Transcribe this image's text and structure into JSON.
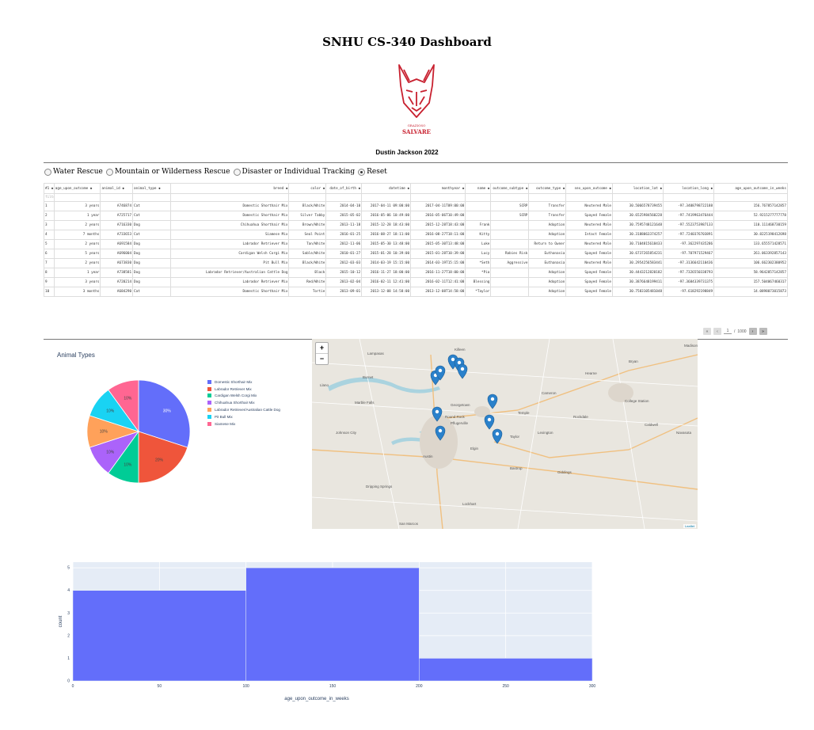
{
  "header": {
    "title": "SNHU CS-340 Dashboard",
    "logo_text_top": "GRAZIOSO",
    "logo_text_bottom": "SALVARE",
    "author": "Dustin Jackson 2022"
  },
  "filters": [
    {
      "label": "Water Rescue",
      "checked": false
    },
    {
      "label": "Mountain or Wilderness Rescue",
      "checked": false
    },
    {
      "label": "Disaster or Individual Tracking",
      "checked": false
    },
    {
      "label": "Reset",
      "checked": true
    }
  ],
  "table": {
    "columns": [
      "#1 ◆",
      "age_upon_outcome ◆",
      "animal_id ◆",
      "animal_type ◆",
      "breed ◆",
      "color ◆",
      "date_of_birth ◆",
      "datetime ◆",
      "monthyear ◆",
      "name ◆",
      "outcome_subtype ◆",
      "outcome_type ◆",
      "sex_upon_outcome ◆",
      "location_lat ◆",
      "location_long ◆",
      "age_upon_outcome_in_weeks"
    ],
    "filter_placeholder": "filter data...",
    "rows": [
      [
        "1",
        "3 years",
        "A746874",
        "Cat",
        "Domestic Shorthair Mix",
        "Black/White",
        "2014-04-10",
        "2017-04-11 09:00:00",
        "2017-04-11T09:00:00",
        "",
        "SCRP",
        "Transfer",
        "Neutered Male",
        "30.5066578739455",
        "-97.3408798722188",
        "156.767857142857"
      ],
      [
        "2",
        "1 year",
        "A725717",
        "Cat",
        "Domestic Shorthair Mix",
        "Silver Tabby",
        "2015-05-02",
        "2016-05-06 10:49:00",
        "2016-05-06T10:49:00",
        "",
        "SCRP",
        "Transfer",
        "Spayed Female",
        "30.6525984560228",
        "-97.7419963476444",
        "52.9215277777778"
      ],
      [
        "3",
        "2 years",
        "A716330",
        "Dog",
        "Chihuahua Shorthair Mix",
        "Brown/White",
        "2013-11-18",
        "2015-12-28 18:43:00",
        "2015-12-28T18:43:00",
        "Frank",
        "",
        "Adoption",
        "Neutered Male",
        "30.7595748121648",
        "-97.5523753987133",
        "110.111468730159"
      ],
      [
        "4",
        "7 months",
        "A733653",
        "Cat",
        "Siamese Mix",
        "Seal Point",
        "2016-01-25",
        "2016-08-27 18:11:00",
        "2016-08-27T18:11:00",
        "Kitty",
        "",
        "Adoption",
        "Intact Female",
        "30.3188063374257",
        "-97.7240376703891",
        "30.8225198412698"
      ],
      [
        "5",
        "2 years",
        "A691584",
        "Dog",
        "Labrador Retriever Mix",
        "Tan/White",
        "2012-11-06",
        "2015-05-30 13:48:00",
        "2015-05-30T13:48:00",
        "Luke",
        "",
        "Return to Owner",
        "Neutered Male",
        "30.7104815618433",
        "-97.362297435286",
        "133.655571428571"
      ],
      [
        "6",
        "5 years",
        "A696004",
        "Dog",
        "Cardigan Welsh Corgi Mix",
        "Sable/White",
        "2010-01-27",
        "2015-01-28 10:39:00",
        "2015-01-28T10:39:00",
        "Lucy",
        "Rabies Risk",
        "Euthanasia",
        "Spayed Female",
        "30.6737265854231",
        "-97.707971529467",
        "261.063392857143"
      ],
      [
        "7",
        "2 years",
        "A673830",
        "Dog",
        "Pit Bull Mix",
        "Black/White",
        "2012-03-03",
        "2014-03-19 15:15:00",
        "2014-03-19T15:15:00",
        "*Seth",
        "Aggressive",
        "Euthanasia",
        "Neutered Male",
        "30.2954256583441",
        "-97.3136642110436",
        "106.662302380952"
      ],
      [
        "8",
        "1 year",
        "A738581",
        "Dog",
        "Labrador Retriever/Australian Cattle Dog",
        "Black",
        "2015-10-12",
        "2016-11-27 18:00:00",
        "2016-11-27T18:00:00",
        "*Pia",
        "",
        "Adoption",
        "Spayed Female",
        "30.4443212820182",
        "-97.7326550338793",
        "58.9642857142857"
      ],
      [
        "9",
        "3 years",
        "A720214",
        "Dog",
        "Labrador Retriever Mix",
        "Red/White",
        "2013-02-04",
        "2016-02-11 12:41:00",
        "2016-02-11T12:41:00",
        "Blessing",
        "",
        "Adoption",
        "Spayed Female",
        "30.3876648199411",
        "-97.3684339731375",
        "157.504067460317"
      ],
      [
        "10",
        "3 months",
        "A684290",
        "Cat",
        "Domestic Shorthair Mix",
        "Tortie",
        "2013-09-01",
        "2013-12-08 14:58:00",
        "2013-12-08T14:58:00",
        "*Taylor",
        "",
        "Adoption",
        "Spayed Female",
        "30.7583105481048",
        "-97.618292198849",
        "14.0898073015873"
      ]
    ]
  },
  "pager": {
    "first": "«",
    "prev": "‹",
    "current": "1",
    "separator": "/",
    "total": "1000",
    "next": "›",
    "last": "»"
  },
  "pie": {
    "title": "Animal Types",
    "chart_data": {
      "type": "pie",
      "title": "Animal Types",
      "labels": [
        "Domestic Shorthair Mix",
        "Labrador Retriever Mix",
        "Cardigan Welsh Corgi Mix",
        "Chihuahua Shorthair Mix",
        "Labrador Retriever/Australian Cattle Dog",
        "Pit Bull Mix",
        "Siamese Mix"
      ],
      "values": [
        30,
        20,
        10,
        10,
        10,
        10,
        10
      ],
      "value_labels": [
        "30%",
        "20%",
        "10%",
        "10%",
        "10%",
        "10%",
        "10%"
      ],
      "colors": [
        "#636efa",
        "#ef553b",
        "#00cc96",
        "#ab63fa",
        "#ffa15a",
        "#19d3f3",
        "#ff6692"
      ],
      "legend_position": "right"
    }
  },
  "map": {
    "zoom_in": "+",
    "zoom_out": "−",
    "attribution": "Leaflet",
    "places": [
      "Burnet",
      "Marble Falls",
      "Round Rock",
      "Pflugerville",
      "Austin",
      "Dripping Springs",
      "San Marcos",
      "Temple",
      "Taylor",
      "Bastrop",
      "Lockhart",
      "Lexington",
      "Giddings",
      "Cameron",
      "Georgetown",
      "Bryan",
      "College Station",
      "Caldwell",
      "Rockdale",
      "Killeen",
      "Lampasas",
      "Hearne",
      "Madisonville",
      "Navasota",
      "Llano",
      "Johnson City",
      "Elgin"
    ],
    "marker_count": 10,
    "marker_icon": "map-marker-icon"
  },
  "histogram": {
    "chart_data": {
      "type": "bar",
      "xlabel": "age_upon_outcome_in_weeks",
      "ylabel": "count",
      "bins": [
        {
          "start": 0,
          "end": 100,
          "count": 4
        },
        {
          "start": 100,
          "end": 200,
          "count": 5
        },
        {
          "start": 200,
          "end": 300,
          "count": 1
        }
      ],
      "xlim": [
        0,
        300
      ],
      "ylim": [
        0,
        5.25
      ],
      "xticks": [
        0,
        50,
        100,
        150,
        200,
        250,
        300
      ],
      "yticks": [
        0,
        1,
        2,
        3,
        4,
        5
      ],
      "bar_color": "#636efa",
      "plot_bg": "#e5ecf6"
    }
  }
}
